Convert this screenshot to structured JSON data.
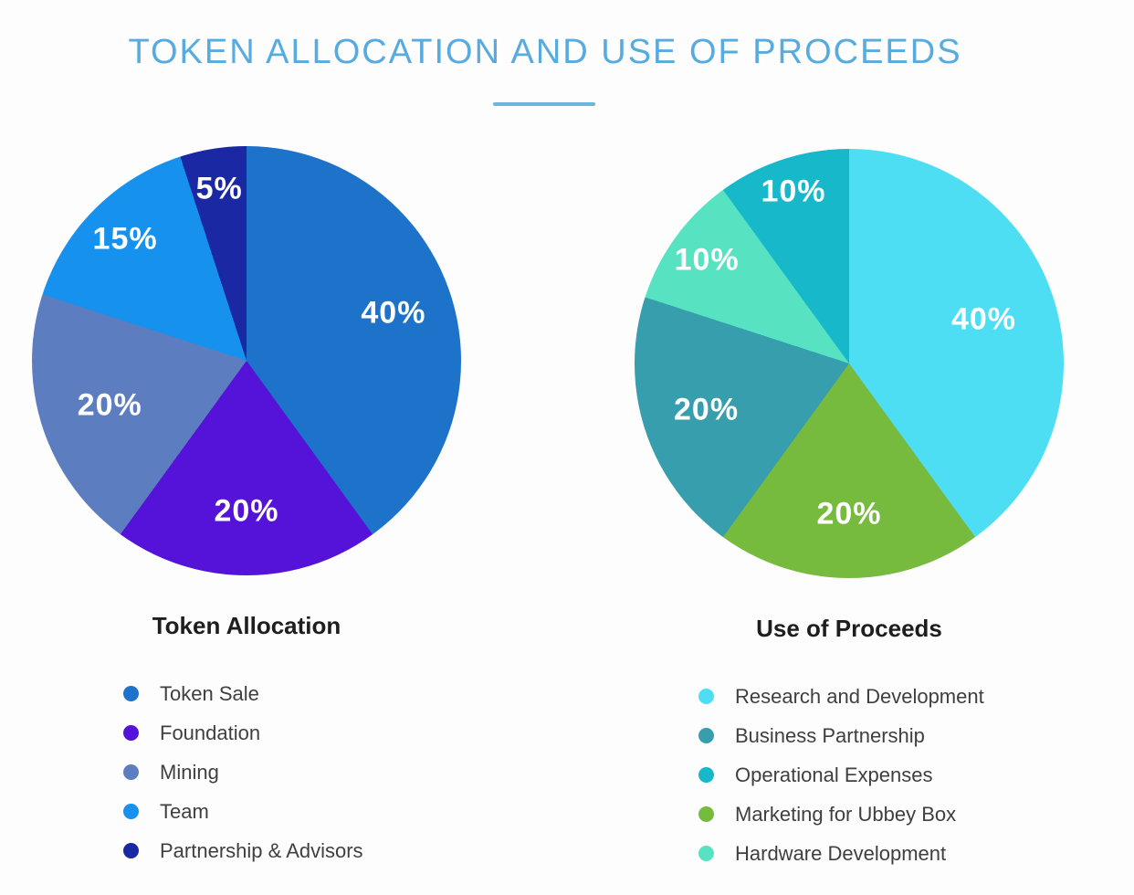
{
  "page": {
    "title": "TOKEN ALLOCATION AND USE OF PROCEEDS",
    "title_color": "#57ABDE",
    "divider_color": "#6CB5DE",
    "background_color": "#FDFDFD"
  },
  "chart_data": [
    {
      "type": "pie",
      "title": "Token Allocation",
      "start_angle_deg": 0,
      "direction": "clockwise",
      "value_label_format": "percent",
      "value_label_color": "#FFFFFF",
      "legend_position": "bottom-left",
      "slices": [
        {
          "label": "Token Sale",
          "value": 40,
          "color": "#1D72C9",
          "label_r": 0.72
        },
        {
          "label": "Foundation",
          "value": 20,
          "color": "#5512D9",
          "label_r": 0.7
        },
        {
          "label": "Mining",
          "value": 20,
          "color": "#5C7EC0",
          "label_r": 0.67
        },
        {
          "label": "Team",
          "value": 15,
          "color": "#1692EE",
          "label_r": 0.8
        },
        {
          "label": "Partnership & Advisors",
          "value": 5,
          "color": "#1A28A4",
          "label_r": 0.81
        }
      ],
      "legend_order": [
        0,
        1,
        2,
        3,
        4
      ]
    },
    {
      "type": "pie",
      "title": "Use of Proceeds",
      "start_angle_deg": 0,
      "direction": "clockwise",
      "value_label_format": "percent",
      "value_label_color": "#FFFFFF",
      "legend_position": "bottom-left",
      "slices": [
        {
          "label": "Research and Development",
          "value": 40,
          "color": "#4EDEF4",
          "label_r": 0.66
        },
        {
          "label": "Marketing for Ubbey Box",
          "value": 20,
          "color": "#76BA3E",
          "label_r": 0.7
        },
        {
          "label": "Business Partnership",
          "value": 20,
          "color": "#369EAC",
          "label_r": 0.7
        },
        {
          "label": "Hardware Development",
          "value": 10,
          "color": "#57E3C1",
          "label_r": 0.82
        },
        {
          "label": "Operational Expenses",
          "value": 10,
          "color": "#16B8C9",
          "label_r": 0.84
        }
      ],
      "legend_order": [
        0,
        2,
        4,
        1,
        3
      ]
    }
  ]
}
